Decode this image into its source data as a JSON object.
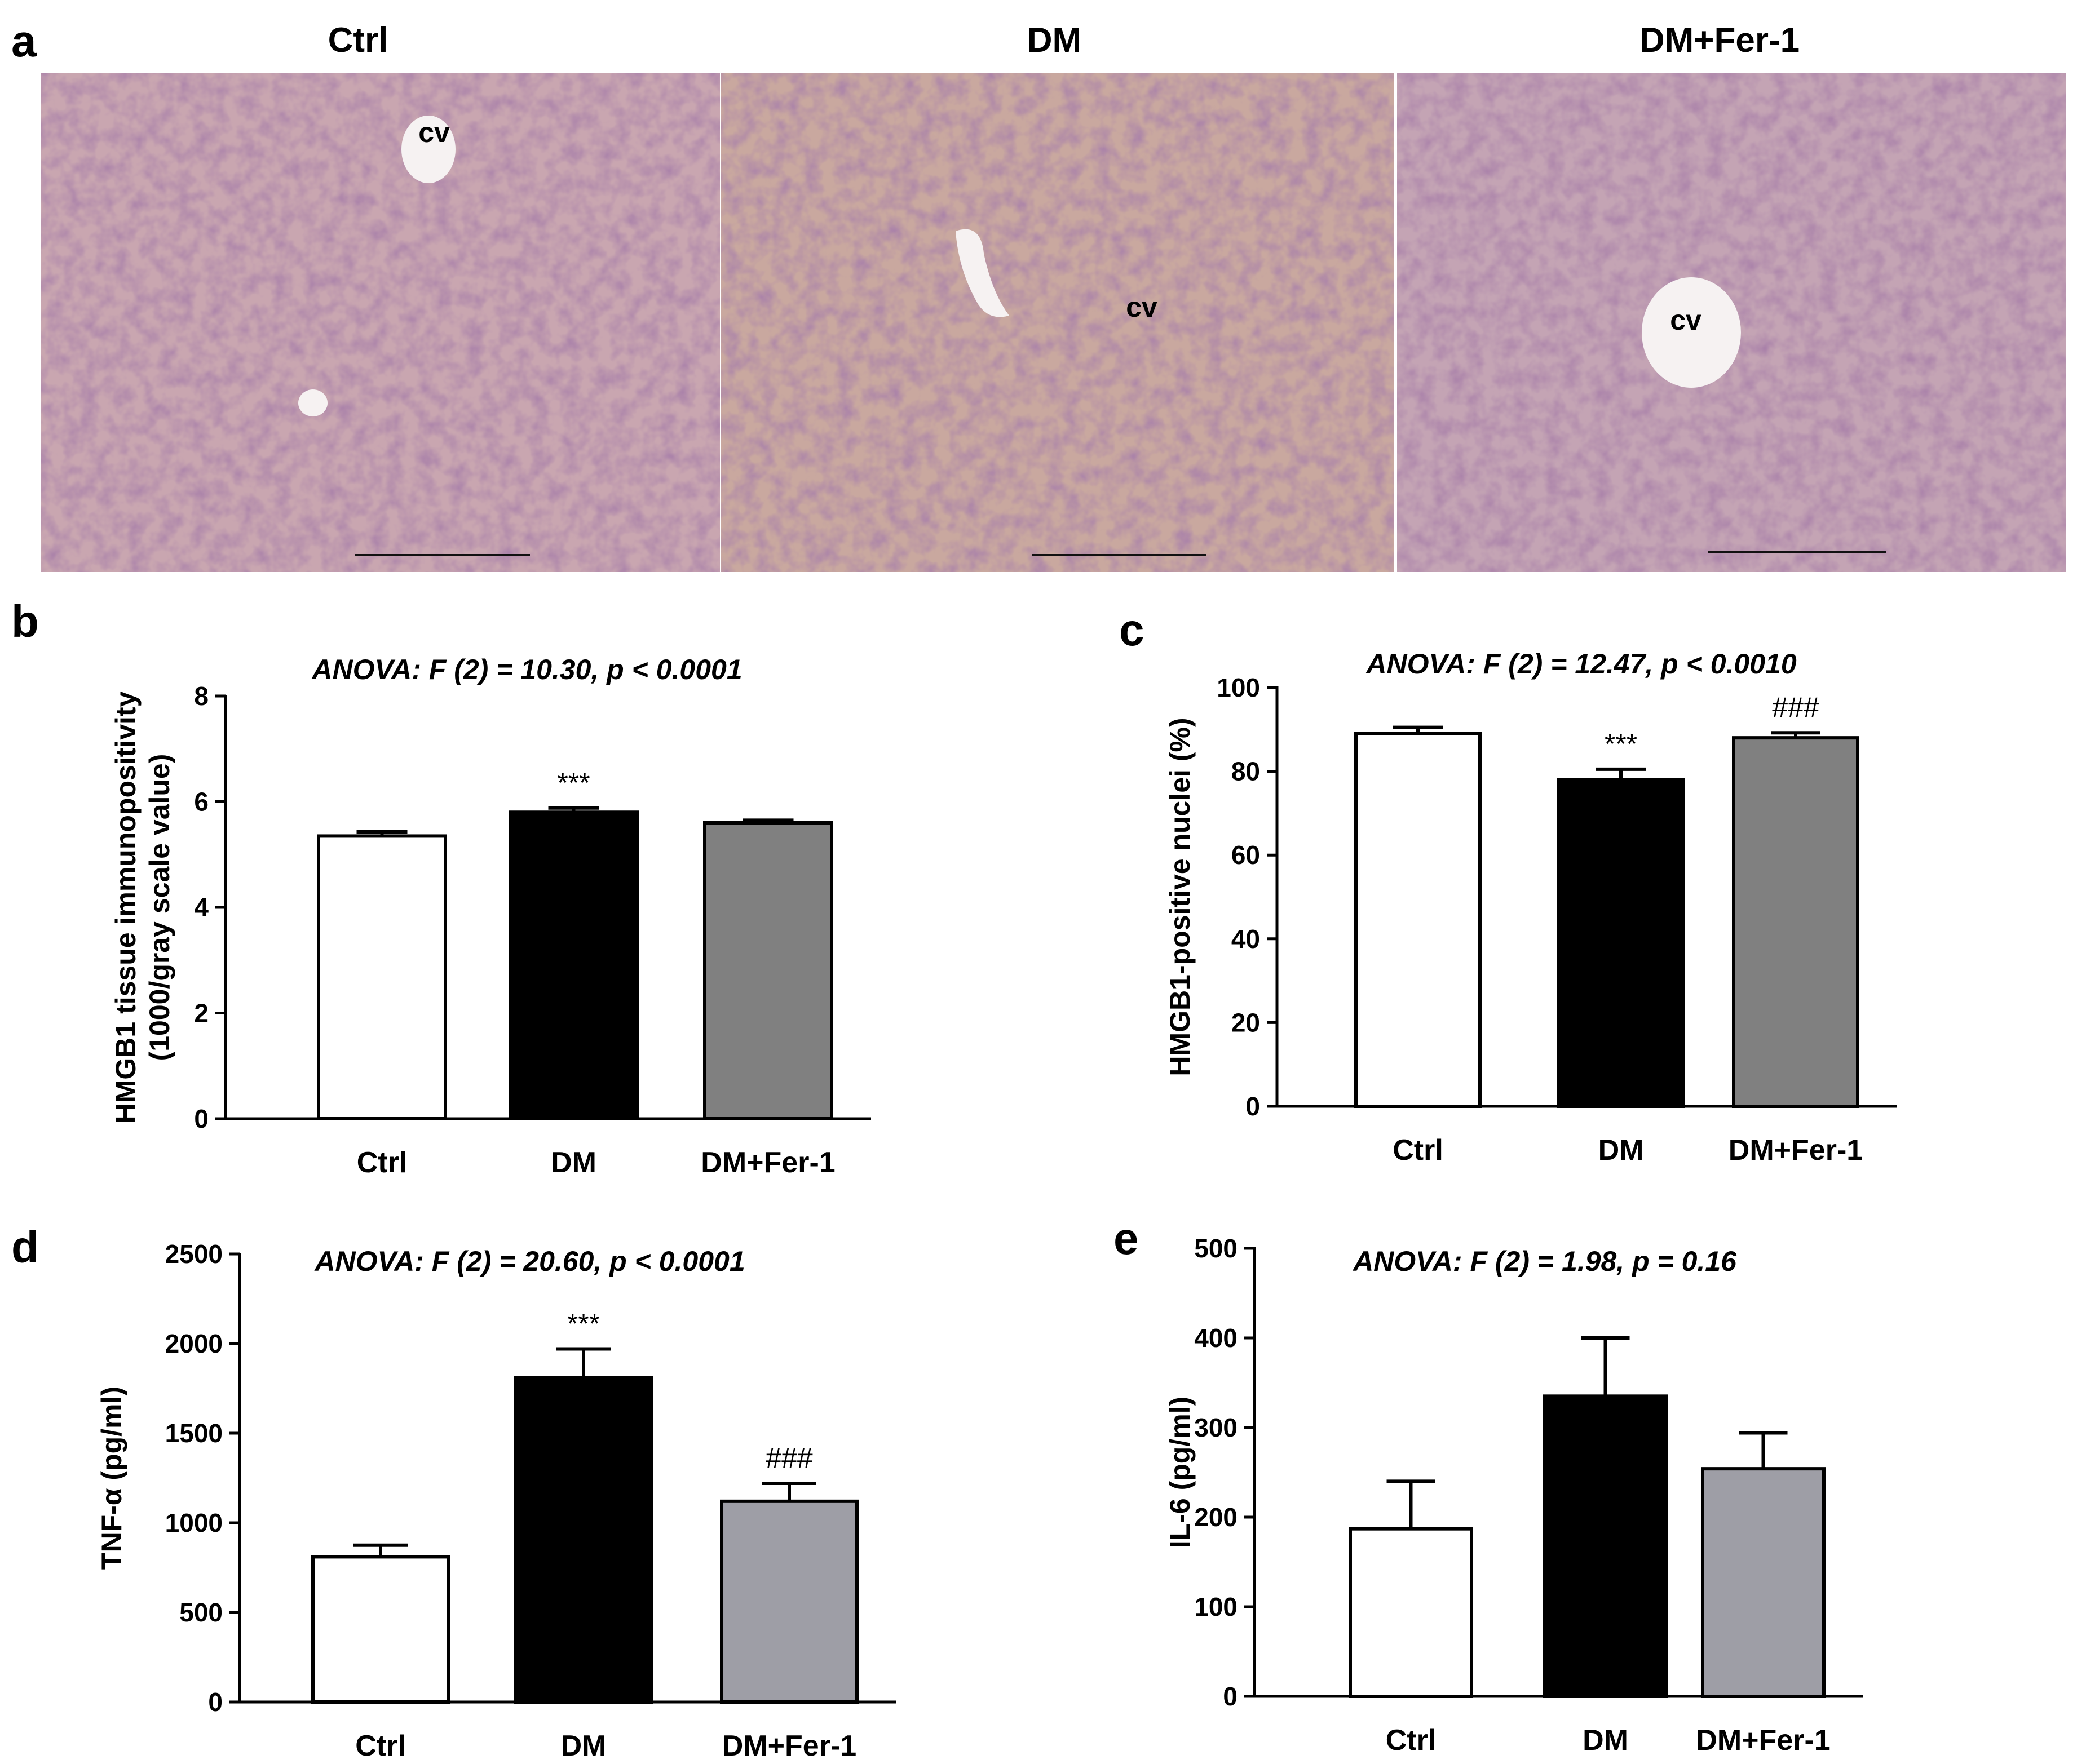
{
  "panel_a": {
    "letter": "a",
    "images": [
      {
        "title": "Ctrl",
        "cv_label": "cv",
        "tint": "#c9a6b0"
      },
      {
        "title": "DM",
        "cv_label": "cv",
        "tint": "#c9a89f"
      },
      {
        "title": "DM+Fer-1",
        "cv_label": "cv",
        "tint": "#c4a4b4"
      }
    ]
  },
  "chart_data": [
    {
      "id": "b",
      "letter": "b",
      "type": "bar",
      "title": "ANOVA: F (2) = 10.30, p < 0.0001",
      "ylabel_lines": [
        "HMGB1 tissue immunopositivity",
        "(1000/gray scale value)"
      ],
      "categories": [
        "Ctrl",
        "DM",
        "DM+Fer-1"
      ],
      "values": [
        5.35,
        5.8,
        5.6
      ],
      "errors": [
        0.08,
        0.08,
        0.05
      ],
      "colors": [
        "#ffffff",
        "#000000",
        "#808080"
      ],
      "significance": [
        "",
        "***",
        ""
      ],
      "ylim": [
        0,
        8
      ],
      "yticks": [
        0,
        2,
        4,
        6,
        8
      ]
    },
    {
      "id": "c",
      "letter": "c",
      "type": "bar",
      "title": "ANOVA: F (2) = 12.47, p < 0.0010",
      "ylabel_lines": [
        "HMGB1-positive nuclei (%)"
      ],
      "categories": [
        "Ctrl",
        "DM",
        "DM+Fer-1"
      ],
      "values": [
        89,
        78,
        88
      ],
      "errors": [
        1.5,
        2.5,
        1.2
      ],
      "colors": [
        "#ffffff",
        "#000000",
        "#808080"
      ],
      "significance": [
        "",
        "***",
        "###"
      ],
      "ylim": [
        0,
        100
      ],
      "yticks": [
        0,
        20,
        40,
        60,
        80,
        100
      ]
    },
    {
      "id": "d",
      "letter": "d",
      "type": "bar",
      "title": "ANOVA: F (2) = 20.60, p < 0.0001",
      "ylabel_lines": [
        "TNF-α (pg/ml)"
      ],
      "categories": [
        "Ctrl",
        "DM",
        "DM+Fer-1"
      ],
      "values": [
        810,
        1810,
        1120
      ],
      "errors": [
        65,
        160,
        100
      ],
      "colors": [
        "#ffffff",
        "#000000",
        "#9e9ea6"
      ],
      "significance": [
        "",
        "***",
        "###"
      ],
      "ylim": [
        0,
        2500
      ],
      "yticks": [
        0,
        500,
        1000,
        1500,
        2000,
        2500
      ]
    },
    {
      "id": "e",
      "letter": "e",
      "type": "bar",
      "title": "ANOVA: F (2) = 1.98, p = 0.16",
      "ylabel_lines": [
        "IL-6 (pg/ml)"
      ],
      "categories": [
        "Ctrl",
        "DM",
        "DM+Fer-1"
      ],
      "values": [
        187,
        335,
        254
      ],
      "errors": [
        53,
        65,
        40
      ],
      "colors": [
        "#ffffff",
        "#000000",
        "#9e9ea6"
      ],
      "significance": [
        "",
        "",
        ""
      ],
      "ylim": [
        0,
        500
      ],
      "yticks": [
        0,
        100,
        200,
        300,
        400,
        500
      ]
    }
  ]
}
